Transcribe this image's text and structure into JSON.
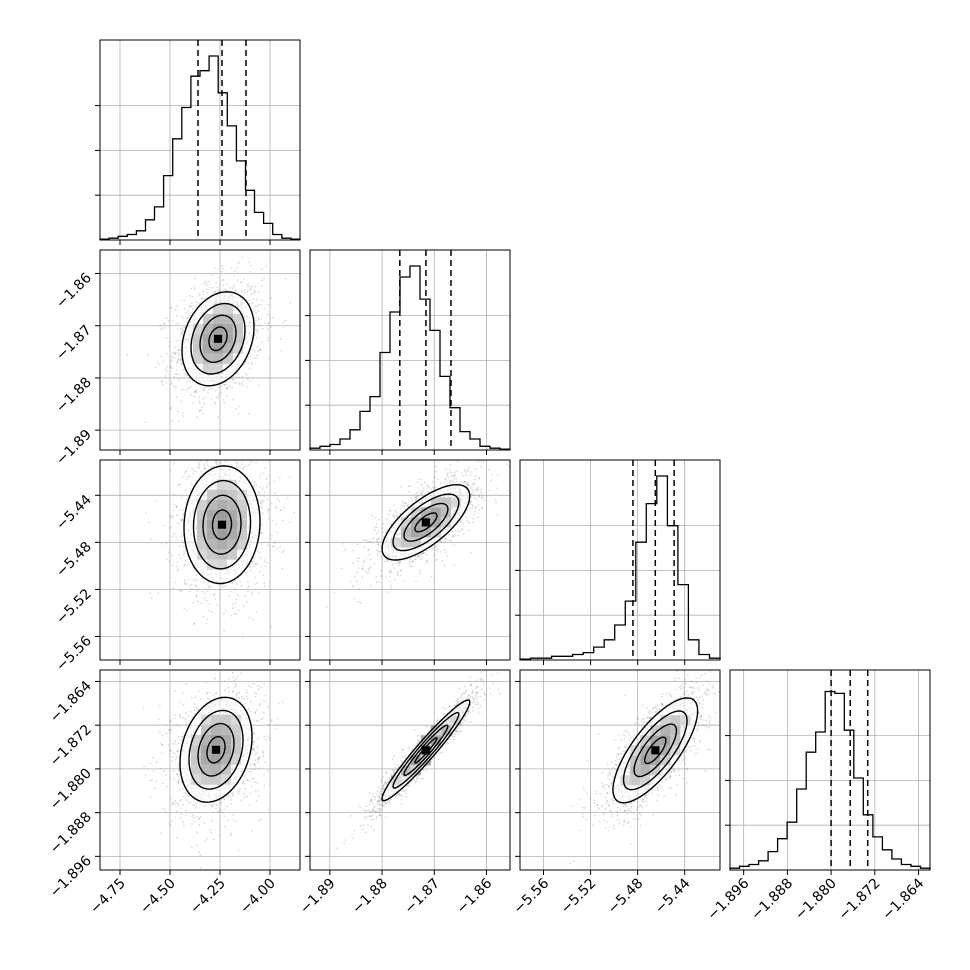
{
  "chart_data": {
    "type": "scatter",
    "kind": "corner",
    "grid": true,
    "parameters": [
      {
        "range": [
          -4.85,
          -3.85
        ],
        "ticks": [
          -4.75,
          -4.5,
          -4.25,
          -4.0
        ],
        "tick_labels": [
          "−4.75",
          "−4.50",
          "−4.25",
          "−4.00"
        ],
        "quantiles": [
          -4.36,
          -4.24,
          -4.12
        ]
      },
      {
        "range": [
          -1.8938,
          -1.8555
        ],
        "ticks": [
          -1.89,
          -1.88,
          -1.87,
          -1.86
        ],
        "tick_labels": [
          "−1.89",
          "−1.88",
          "−1.87",
          "−1.86"
        ],
        "quantiles": [
          -1.8766,
          -1.8716,
          -1.8668
        ]
      },
      {
        "range": [
          -5.58,
          -5.41
        ],
        "ticks": [
          -5.56,
          -5.52,
          -5.48,
          -5.44
        ],
        "tick_labels": [
          "−5.56",
          "−5.52",
          "−5.48",
          "−5.44"
        ],
        "quantiles": [
          -5.484,
          -5.465,
          -5.449
        ]
      },
      {
        "range": [
          -1.8985,
          -1.8619
        ],
        "ticks": [
          -1.896,
          -1.888,
          -1.88,
          -1.872,
          -1.864
        ],
        "tick_labels": [
          "−1.896",
          "−1.888",
          "−1.880",
          "−1.872",
          "−1.864"
        ],
        "quantiles": [
          -1.88,
          -1.8765,
          -1.8733
        ]
      }
    ],
    "histograms": [
      [
        0.005,
        0.01,
        0.02,
        0.03,
        0.05,
        0.11,
        0.18,
        0.35,
        0.55,
        0.72,
        0.89,
        0.92,
        1.0,
        0.8,
        0.62,
        0.43,
        0.27,
        0.15,
        0.09,
        0.03,
        0.01,
        0.005
      ],
      [
        0.01,
        0.02,
        0.03,
        0.06,
        0.11,
        0.21,
        0.29,
        0.53,
        0.75,
        0.94,
        1.0,
        0.82,
        0.65,
        0.4,
        0.23,
        0.1,
        0.06,
        0.02,
        0.01,
        0.005
      ],
      [
        0.005,
        0.01,
        0.01,
        0.02,
        0.02,
        0.03,
        0.04,
        0.07,
        0.11,
        0.19,
        0.32,
        0.64,
        0.85,
        1.0,
        0.73,
        0.41,
        0.11,
        0.03,
        0.01
      ],
      [
        0.01,
        0.02,
        0.03,
        0.05,
        0.1,
        0.17,
        0.26,
        0.44,
        0.64,
        0.75,
        0.97,
        0.96,
        0.76,
        0.5,
        0.3,
        0.18,
        0.11,
        0.06,
        0.03,
        0.02,
        0.01
      ]
    ],
    "pairs": [
      {
        "row": 1,
        "col": 0,
        "center": [
          -4.26,
          -1.8725
        ],
        "spread": [
          0.09,
          0.0045
        ],
        "rho": 0.25
      },
      {
        "row": 2,
        "col": 0,
        "center": [
          -4.24,
          -5.465
        ],
        "spread": [
          0.095,
          0.025
        ],
        "rho": 0.05
      },
      {
        "row": 2,
        "col": 1,
        "center": [
          -1.8716,
          -5.463
        ],
        "spread": [
          0.0042,
          0.016
        ],
        "rho": 0.7
      },
      {
        "row": 3,
        "col": 0,
        "center": [
          -4.27,
          -1.8765
        ],
        "spread": [
          0.09,
          0.0048
        ],
        "rho": 0.25
      },
      {
        "row": 3,
        "col": 1,
        "center": [
          -1.8716,
          -1.8766
        ],
        "spread": [
          0.0042,
          0.0046
        ],
        "rho": 0.96
      },
      {
        "row": 3,
        "col": 2,
        "center": [
          -5.465,
          -1.8766
        ],
        "spread": [
          0.018,
          0.0048
        ],
        "rho": 0.75
      }
    ]
  }
}
